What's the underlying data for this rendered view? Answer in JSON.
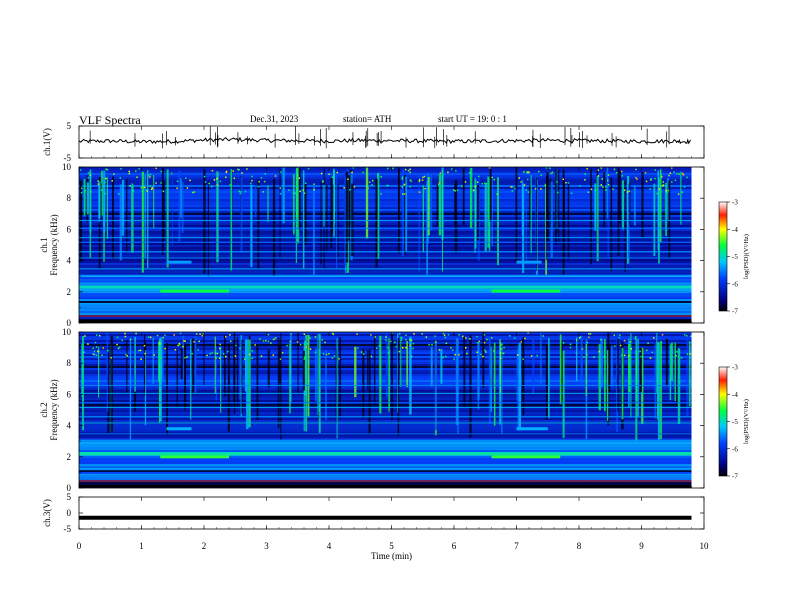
{
  "header": {
    "title": "VLF  Spectra",
    "date": "Dec.31, 2023",
    "station": "station= ATH",
    "start": "start  UT  =    19: 0   : 1"
  },
  "chart_data": [
    {
      "type": "line",
      "panel": "ch1-waveform",
      "ylabel": "ch.1(V)",
      "ylim": [
        -5,
        5
      ],
      "yticks": [
        "5",
        "-5"
      ],
      "x": [
        0,
        0.5,
        1,
        1.5,
        2,
        2.5,
        3,
        3.5,
        4,
        4.5,
        5,
        5.5,
        6,
        6.5,
        7,
        7.5,
        8,
        8.5,
        9,
        9.5,
        9.8
      ],
      "values": [
        0.2,
        0.3,
        0.1,
        0.2,
        0.6,
        0.8,
        0.5,
        0.4,
        0.3,
        0.5,
        0.4,
        0.3,
        0.2,
        0.3,
        0.4,
        0.5,
        0.4,
        0.3,
        0.2,
        0.3,
        0.1
      ],
      "color": "#000000"
    },
    {
      "type": "heatmap",
      "panel": "ch1-spectrogram",
      "ylabel": "ch.1",
      "ylabel2": "Frequency  (kHz)",
      "ylim": [
        0,
        10
      ],
      "yticks": [
        "0",
        "2",
        "4",
        "6",
        "8",
        "10"
      ],
      "xlim": [
        0,
        10
      ],
      "colorbar": {
        "label": "log(PSD)(V²/Hz)",
        "ticks": [
          "-3",
          "-4",
          "-5",
          "-6",
          "-7"
        ],
        "range": [
          -7,
          -3
        ]
      },
      "data_extent_min": 9.8,
      "bands_khz": [
        {
          "freq": 2.05,
          "level": -4.6,
          "segments": [
            [
              1.3,
              2.4
            ],
            [
              6.6,
              7.7
            ]
          ]
        },
        {
          "freq": 2.3,
          "level": -5.0,
          "segments": [
            [
              0,
              9.8
            ]
          ]
        },
        {
          "freq": 3.9,
          "level": -5.4,
          "segments": [
            [
              1.4,
              1.8
            ],
            [
              7.0,
              7.4
            ]
          ]
        }
      ]
    },
    {
      "type": "heatmap",
      "panel": "ch2-spectrogram",
      "ylabel": "ch.2",
      "ylabel2": "Frequency  (kHz)",
      "ylim": [
        0,
        10
      ],
      "yticks": [
        "0",
        "2",
        "4",
        "6",
        "8",
        "10"
      ],
      "xlim": [
        0,
        10
      ],
      "colorbar": {
        "label": "log(PSD)(V²/Hz)",
        "ticks": [
          "-3",
          "-4",
          "-5",
          "-6",
          "-7"
        ],
        "range": [
          -7,
          -3
        ]
      },
      "data_extent_min": 9.8,
      "bands_khz": [
        {
          "freq": 2.0,
          "level": -4.5,
          "segments": [
            [
              1.3,
              2.4
            ],
            [
              6.6,
              7.7
            ]
          ]
        },
        {
          "freq": 2.2,
          "level": -4.9,
          "segments": [
            [
              0,
              9.8
            ]
          ]
        },
        {
          "freq": 3.8,
          "level": -5.3,
          "segments": [
            [
              1.4,
              1.8
            ],
            [
              7.0,
              7.5
            ]
          ]
        }
      ]
    },
    {
      "type": "line",
      "panel": "ch3-waveform",
      "ylabel": "ch.3(V)",
      "ylim": [
        -5,
        5
      ],
      "yticks": [
        "5",
        "0",
        "-5"
      ],
      "x": [
        0,
        9.8
      ],
      "values": [
        -1.5,
        -1.5
      ],
      "color": "#000000"
    }
  ],
  "xaxis": {
    "label": "Time  (min)",
    "ticks": [
      "0",
      "1",
      "2",
      "3",
      "4",
      "5",
      "6",
      "7",
      "8",
      "9",
      "10"
    ]
  }
}
